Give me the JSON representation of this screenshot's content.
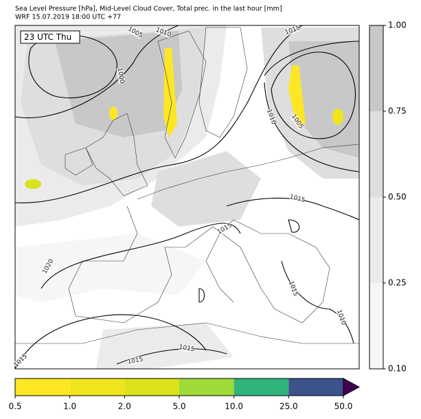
{
  "title": "Sea Level Pressure [hPa], Mid-Level Cloud Cover, Total prec. in the last hour [mm]",
  "subtitle": "WRF 15.07.2019 18:00 UTC +77",
  "time_label": "23 UTC Thu",
  "contour_labels": [
    "1005",
    "1010",
    "1000",
    "1015",
    "1010",
    "1005",
    "1015",
    "1015",
    "1020",
    "1015",
    "1015",
    "1015",
    "1015",
    "1010"
  ],
  "cloud_colorbar": {
    "bounds": [
      {
        "value": 0.1,
        "label": "0.10"
      },
      {
        "value": 0.25,
        "label": "0.25"
      },
      {
        "value": 0.5,
        "label": "0.50"
      },
      {
        "value": 0.75,
        "label": "0.75"
      },
      {
        "value": 1.0,
        "label": "1.00"
      }
    ],
    "colors": [
      "#f6f6f6",
      "#ebebeb",
      "#dedede",
      "#c8c8c8"
    ]
  },
  "precip_colorbar": {
    "bounds": [
      0.5,
      {
        "value": 1.0,
        "label": "1.0"
      },
      {
        "value": 2.0,
        "label": "2.0"
      },
      {
        "value": 5.0,
        "label": "5.0"
      },
      {
        "value": 10.0,
        "label": "10.0"
      },
      {
        "value": 25.0,
        "label": "25.0"
      },
      {
        "value": 50.0,
        "label": "50.0"
      }
    ],
    "colors": [
      "#fde725",
      "#f0e51c",
      "#d9e21a",
      "#a0da39",
      "#2fb47c",
      "#3b528b"
    ],
    "extend_color": "#440154"
  }
}
